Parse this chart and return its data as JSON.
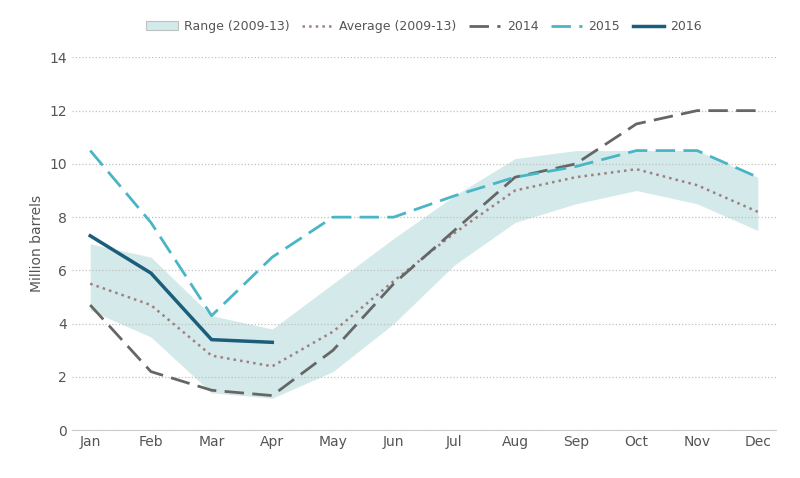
{
  "months": [
    "Jan",
    "Feb",
    "Mar",
    "Apr",
    "May",
    "Jun",
    "Jul",
    "Aug",
    "Sep",
    "Oct",
    "Nov",
    "Dec"
  ],
  "range_low": [
    4.5,
    3.5,
    1.4,
    1.2,
    2.2,
    4.0,
    6.2,
    7.8,
    8.5,
    9.0,
    8.5,
    7.5
  ],
  "range_high": [
    7.0,
    6.5,
    4.3,
    3.8,
    5.5,
    7.2,
    8.8,
    10.2,
    10.5,
    10.5,
    10.5,
    9.5
  ],
  "average": [
    5.5,
    4.7,
    2.8,
    2.4,
    3.7,
    5.6,
    7.4,
    9.0,
    9.5,
    9.8,
    9.2,
    8.2
  ],
  "y2014": [
    4.7,
    2.2,
    1.5,
    1.3,
    3.0,
    5.5,
    7.5,
    9.5,
    10.0,
    11.5,
    12.0,
    12.0
  ],
  "y2015": [
    10.5,
    7.8,
    4.3,
    6.5,
    8.0,
    8.0,
    8.8,
    9.5,
    9.9,
    10.5,
    10.5,
    9.5
  ],
  "y2016": [
    7.3,
    5.9,
    3.4,
    3.3,
    null,
    null,
    null,
    null,
    null,
    null,
    null,
    null
  ],
  "range_color": "#b2d8d8",
  "range_alpha": 0.55,
  "average_color": "#9e8080",
  "color_2014": "#666666",
  "color_2015": "#4ab5c4",
  "color_2016": "#1b5e7b",
  "ylim": [
    0,
    14
  ],
  "yticks": [
    0,
    2,
    4,
    6,
    8,
    10,
    12,
    14
  ],
  "ylabel": "Million barrels",
  "grid_color": "#c0c0c0",
  "background_color": "#ffffff"
}
